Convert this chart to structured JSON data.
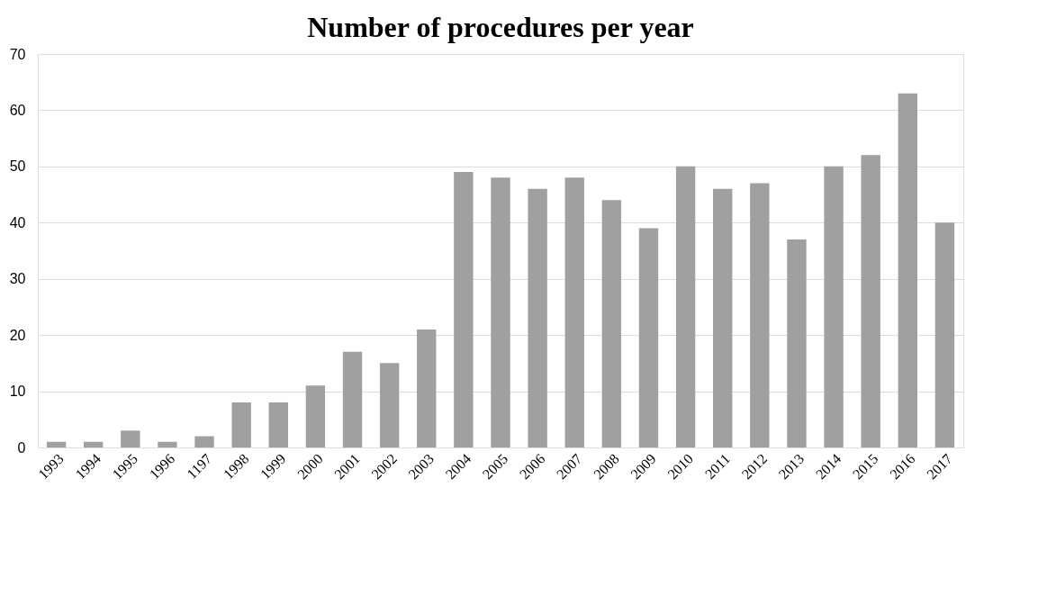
{
  "chart_data": {
    "type": "bar",
    "title": "Number of procedures per year",
    "categories": [
      "1993",
      "1994",
      "1995",
      "1996",
      "1197",
      "1998",
      "1999",
      "2000",
      "2001",
      "2002",
      "2003",
      "2004",
      "2005",
      "2006",
      "2007",
      "2008",
      "2009",
      "2010",
      "2011",
      "2012",
      "2013",
      "2014",
      "2015",
      "2016",
      "2017"
    ],
    "values": [
      1,
      1,
      3,
      1,
      2,
      8,
      8,
      11,
      17,
      15,
      21,
      49,
      48,
      46,
      48,
      44,
      39,
      50,
      46,
      47,
      37,
      50,
      52,
      63,
      40
    ],
    "color": "#a0a0a0",
    "ylim": [
      0,
      70
    ],
    "yticks": [
      0,
      10,
      20,
      30,
      40,
      50,
      60,
      70
    ],
    "grid": "y"
  }
}
